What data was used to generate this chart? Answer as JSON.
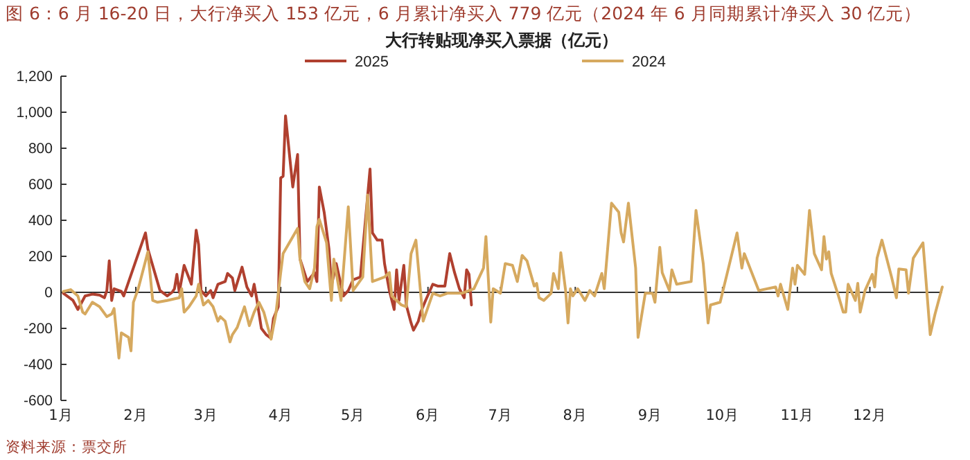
{
  "chart_data": {
    "type": "line",
    "title": "图 6：6 月 16-20 日，大行净买入 153 亿元，6 月累计净买入 779 亿元（2024 年 6 月同期累计净买入 30 亿元）",
    "subtitle": "大行转贴现净买入票据（亿元）",
    "annotations": [
      "资料来源：票交所"
    ],
    "xlim": [
      "--01-01",
      "--12-31"
    ],
    "xticks": [
      {
        "value": "--01-01",
        "label": "1月"
      },
      {
        "value": "--02-01",
        "label": "2月"
      },
      {
        "value": "--03-01",
        "label": "3月"
      },
      {
        "value": "--04-01",
        "label": "4月"
      },
      {
        "value": "--05-01",
        "label": "5月"
      },
      {
        "value": "--06-01",
        "label": "6月"
      },
      {
        "value": "--07-01",
        "label": "7月"
      },
      {
        "value": "--08-01",
        "label": "8月"
      },
      {
        "value": "--09-01",
        "label": "9月"
      },
      {
        "value": "--10-01",
        "label": "10月"
      },
      {
        "value": "--11-01",
        "label": "11月"
      },
      {
        "value": "--12-01",
        "label": "12月"
      }
    ],
    "ylim": [
      -600,
      1200
    ],
    "yticks": [
      -600,
      -400,
      -200,
      0,
      200,
      400,
      600,
      800,
      {
        "value": 1000,
        "label": "1,000"
      },
      {
        "value": 1200,
        "label": "1,200"
      }
    ],
    "legend": "top",
    "marker": "none",
    "line_style": "solid",
    "series": [
      {
        "name": "2025",
        "color": "#b0402f",
        "x": [
          "--01-02",
          "--01-06",
          "--01-08",
          "--01-11",
          "--01-14",
          "--01-17",
          "--01-19",
          "--01-20",
          "--01-21",
          "--01-22",
          "--01-23",
          "--01-26",
          "--01-27",
          "--02-05",
          "--02-06",
          "--02-11",
          "--02-14",
          "--02-16",
          "--02-17",
          "--02-18",
          "--02-19",
          "--02-21",
          "--02-24",
          "--02-26",
          "--02-27",
          "--02-28",
          "--03-01",
          "--03-03",
          "--03-04",
          "--03-06",
          "--03-09",
          "--03-10",
          "--03-12",
          "--03-13",
          "--03-16",
          "--03-18",
          "--03-20",
          "--03-21",
          "--03-22",
          "--03-24",
          "--03-26",
          "--03-28",
          "--03-29",
          "--03-31",
          "--04-01",
          "--04-02",
          "--04-03",
          "--04-06",
          "--04-08",
          "--04-09",
          "--04-12",
          "--04-15",
          "--04-16",
          "--04-17",
          "--04-19",
          "--04-21",
          "--04-22",
          "--04-24",
          "--04-27",
          "--04-29",
          "--05-01",
          "--05-04",
          "--05-08",
          "--05-09",
          "--05-11",
          "--05-13",
          "--05-14",
          "--05-16",
          "--05-18",
          "--05-19",
          "--05-20",
          "--05-22",
          "--05-23",
          "--05-25",
          "--05-26",
          "--05-28",
          "--05-29",
          "--05-31",
          "--06-03",
          "--06-05",
          "--06-08",
          "--06-10",
          "--06-12",
          "--06-14",
          "--06-16",
          "--06-17",
          "--06-18",
          "--06-19"
        ],
        "values": [
          -5,
          -45,
          -95,
          -20,
          -10,
          -15,
          -30,
          10,
          175,
          -45,
          20,
          5,
          -20,
          330,
          240,
          10,
          -20,
          0,
          20,
          100,
          0,
          150,
          45,
          345,
          265,
          10,
          -20,
          10,
          -30,
          45,
          60,
          105,
          80,
          10,
          140,
          30,
          -20,
          45,
          -30,
          -200,
          -235,
          -255,
          -145,
          -80,
          635,
          645,
          980,
          585,
          765,
          185,
          60,
          110,
          60,
          585,
          445,
          240,
          35,
          160,
          -20,
          10,
          70,
          85,
          685,
          330,
          290,
          290,
          160,
          10,
          -95,
          125,
          -45,
          150,
          -70,
          -170,
          -210,
          -160,
          -110,
          -45,
          45,
          35,
          35,
          215,
          110,
          20,
          -30,
          125,
          100,
          -70
        ]
      },
      {
        "name": "2024",
        "color": "#d6a95f",
        "x": [
          "--01-02",
          "--01-05",
          "--01-08",
          "--01-10",
          "--01-11",
          "--01-14",
          "--01-17",
          "--01-20",
          "--01-22",
          "--01-23",
          "--01-25",
          "--01-26",
          "--01-29",
          "--01-30",
          "--01-31",
          "--02-02",
          "--02-06",
          "--02-08",
          "--02-10",
          "--02-14",
          "--02-19",
          "--02-20",
          "--02-21",
          "--02-23",
          "--02-26",
          "--02-27",
          "--02-29",
          "--03-02",
          "--03-04",
          "--03-06",
          "--03-07",
          "--03-09",
          "--03-11",
          "--03-12",
          "--03-14",
          "--03-17",
          "--03-19",
          "--03-21",
          "--03-23",
          "--03-25",
          "--03-28",
          "--03-30",
          "--04-01",
          "--04-02",
          "--04-08",
          "--04-09",
          "--04-11",
          "--04-13",
          "--04-15",
          "--04-16",
          "--04-17",
          "--04-20",
          "--04-22",
          "--04-23",
          "--04-26",
          "--04-29",
          "--05-01",
          "--05-05",
          "--05-07",
          "--05-09",
          "--05-14",
          "--05-16",
          "--05-17",
          "--05-21",
          "--05-23",
          "--05-25",
          "--05-27",
          "--05-30",
          "--06-03",
          "--06-06",
          "--06-09",
          "--06-15",
          "--06-20",
          "--06-24",
          "--06-25",
          "--06-27",
          "--06-28",
          "--07-01",
          "--07-03",
          "--07-06",
          "--07-08",
          "--07-10",
          "--07-12",
          "--07-15",
          "--07-16",
          "--07-17",
          "--07-19",
          "--07-22",
          "--07-23",
          "--07-25",
          "--07-26",
          "--07-28",
          "--07-29",
          "--07-30",
          "--07-31",
          "--08-02",
          "--08-05",
          "--08-07",
          "--08-09",
          "--08-12",
          "--08-13",
          "--08-16",
          "--08-19",
          "--08-20",
          "--08-21",
          "--08-23",
          "--08-26",
          "--08-27",
          "--08-30",
          "--09-02",
          "--09-03",
          "--09-05",
          "--09-06",
          "--09-09",
          "--09-10",
          "--09-12",
          "--09-18",
          "--09-20",
          "--09-23",
          "--09-25",
          "--09-26",
          "--09-30",
          "--10-03",
          "--10-07",
          "--10-09",
          "--10-10",
          "--10-16",
          "--10-23",
          "--10-24",
          "--10-25",
          "--10-28",
          "--10-30",
          "--10-31",
          "--11-01",
          "--11-04",
          "--11-06",
          "--11-08",
          "--11-11",
          "--11-12",
          "--11-13",
          "--11-14",
          "--11-15",
          "--11-18",
          "--11-20",
          "--11-21",
          "--11-22",
          "--11-25",
          "--11-26",
          "--11-27",
          "--11-29",
          "--12-02",
          "--12-03",
          "--12-04",
          "--12-06",
          "--12-10",
          "--12-12",
          "--12-13",
          "--12-16",
          "--12-17",
          "--12-19",
          "--12-23",
          "--12-24",
          "--12-26",
          "--12-28",
          "--12-31"
        ],
        "values": [
          5,
          15,
          -20,
          -110,
          -120,
          -55,
          -80,
          -135,
          -120,
          -90,
          -365,
          -225,
          -250,
          -325,
          -55,
          20,
          225,
          -45,
          -55,
          -45,
          -30,
          20,
          -110,
          -80,
          -20,
          45,
          -70,
          -45,
          -80,
          -160,
          -135,
          -160,
          -275,
          -235,
          -195,
          -80,
          -185,
          -110,
          -55,
          -110,
          -260,
          -120,
          110,
          215,
          355,
          185,
          60,
          20,
          135,
          365,
          405,
          275,
          -45,
          185,
          -45,
          475,
          10,
          85,
          540,
          60,
          85,
          110,
          -20,
          -70,
          -80,
          215,
          290,
          -160,
          -5,
          -20,
          -5,
          -5,
          20,
          135,
          310,
          -165,
          20,
          -5,
          160,
          150,
          60,
          205,
          175,
          35,
          50,
          -30,
          -45,
          -5,
          105,
          20,
          220,
          10,
          -170,
          20,
          -20,
          20,
          -45,
          10,
          -20,
          105,
          20,
          495,
          445,
          330,
          280,
          495,
          135,
          -250,
          -5,
          -5,
          -55,
          250,
          110,
          10,
          125,
          45,
          60,
          455,
          160,
          -170,
          -70,
          -55,
          110,
          330,
          135,
          215,
          10,
          30,
          -20,
          45,
          -95,
          135,
          45,
          150,
          100,
          455,
          215,
          125,
          310,
          185,
          225,
          105,
          -20,
          -110,
          -110,
          45,
          -45,
          50,
          -110,
          10,
          100,
          30,
          190,
          290,
          85,
          -30,
          130,
          125,
          -5,
          190,
          275,
          110,
          -235,
          -120,
          30
        ]
      }
    ]
  }
}
